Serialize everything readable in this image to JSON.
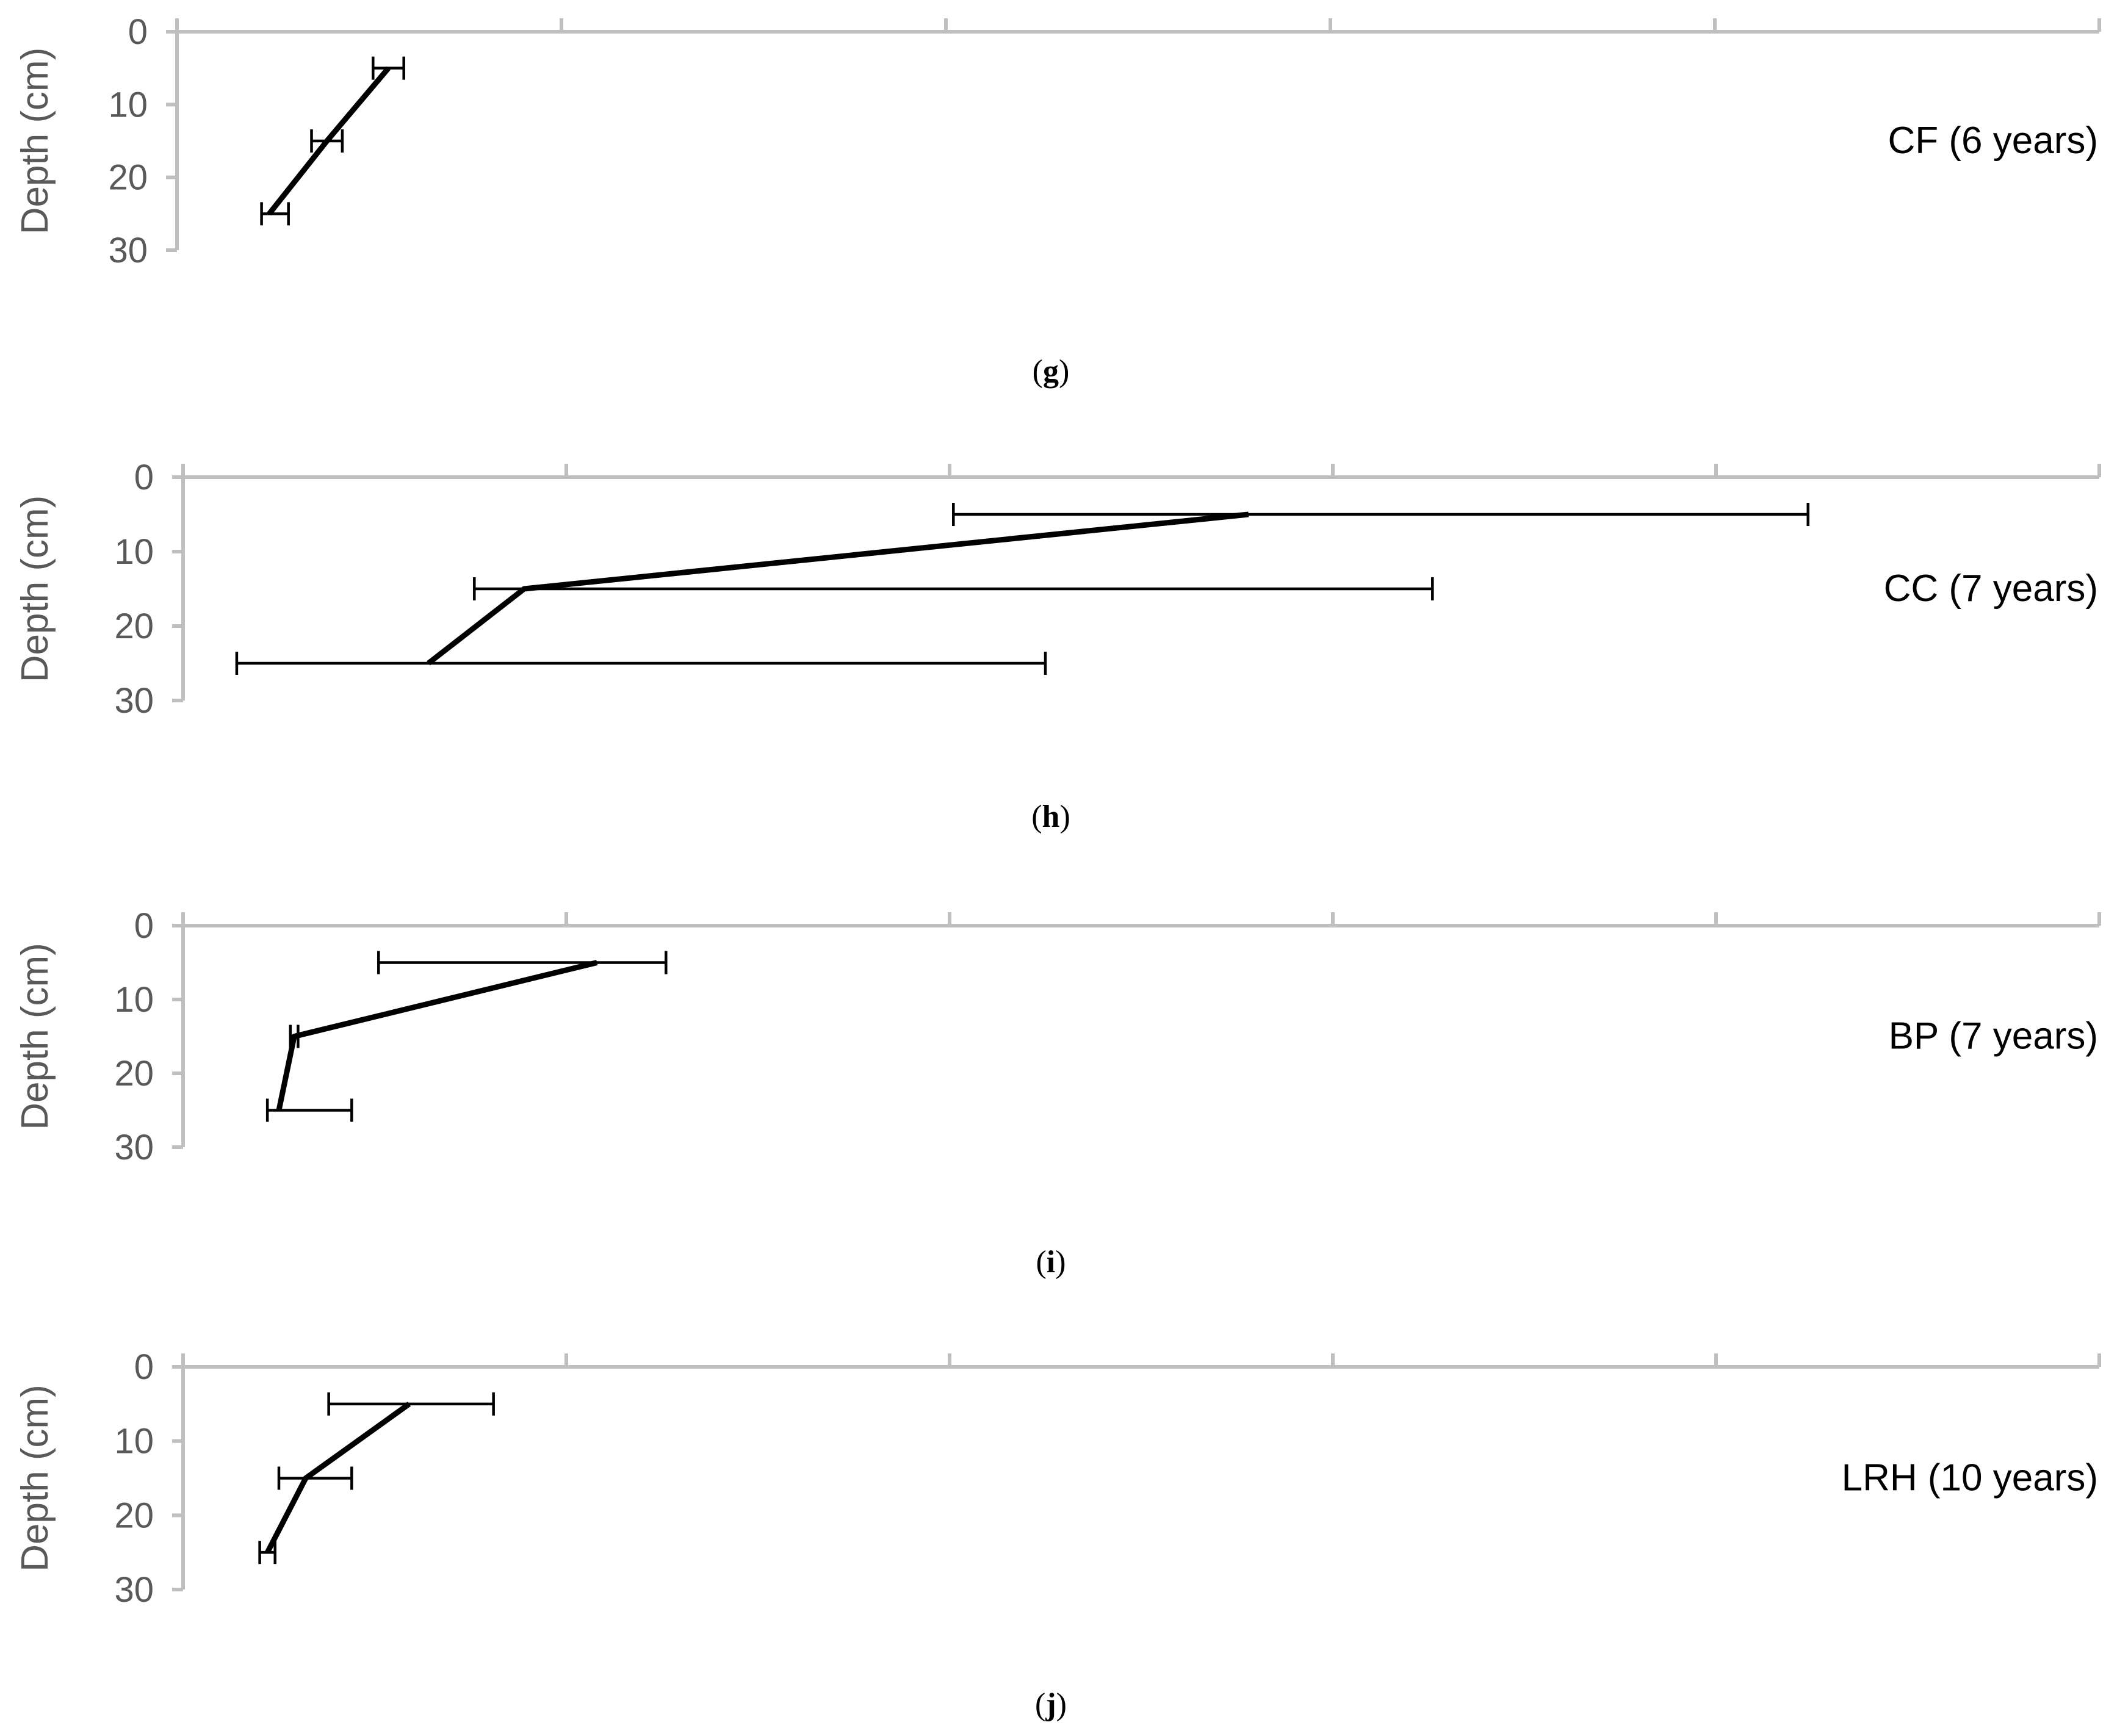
{
  "chart_data": [
    {
      "type": "line",
      "panel_tag": "g",
      "series_label": "CF (6 years)",
      "ylabel": "Depth (cm)",
      "y_ticks": [
        "0",
        "10",
        "20",
        "30"
      ],
      "ylim": [
        0,
        30
      ],
      "y_inverted": true,
      "xlim": [
        0,
        5
      ],
      "x_ticks_shown": false,
      "points": [
        {
          "depth": 5,
          "x": 0.55,
          "err_low": 0.51,
          "err_high": 0.59
        },
        {
          "depth": 15,
          "x": 0.39,
          "err_low": 0.35,
          "err_high": 0.43
        },
        {
          "depth": 25,
          "x": 0.24,
          "err_low": 0.22,
          "err_high": 0.29
        }
      ]
    },
    {
      "type": "line",
      "panel_tag": "h",
      "series_label": "CC (7 years)",
      "ylabel": "Depth (cm)",
      "y_ticks": [
        "0",
        "10",
        "20",
        "30"
      ],
      "ylim": [
        0,
        30
      ],
      "y_inverted": true,
      "xlim": [
        0,
        5
      ],
      "x_ticks_shown": false,
      "points": [
        {
          "depth": 5,
          "x": 2.78,
          "err_low": 2.01,
          "err_high": 4.24
        },
        {
          "depth": 15,
          "x": 0.89,
          "err_low": 0.76,
          "err_high": 3.26
        },
        {
          "depth": 25,
          "x": 0.64,
          "err_low": 0.14,
          "err_high": 2.25
        }
      ]
    },
    {
      "type": "line",
      "panel_tag": "i",
      "series_label": "BP (7 years)",
      "ylabel": "Depth (cm)",
      "y_ticks": [
        "0",
        "10",
        "20",
        "30"
      ],
      "ylim": [
        0,
        30
      ],
      "y_inverted": true,
      "xlim": [
        0,
        5
      ],
      "x_ticks_shown": false,
      "points": [
        {
          "depth": 5,
          "x": 1.08,
          "err_low": 0.51,
          "err_high": 1.26
        },
        {
          "depth": 15,
          "x": 0.29,
          "err_low": 0.28,
          "err_high": 0.3
        },
        {
          "depth": 25,
          "x": 0.25,
          "err_low": 0.22,
          "err_high": 0.44
        }
      ]
    },
    {
      "type": "line",
      "panel_tag": "j",
      "series_label": "LRH (10 years)",
      "ylabel": "Depth (cm)",
      "y_ticks": [
        "0",
        "10",
        "20",
        "30"
      ],
      "ylim": [
        0,
        30
      ],
      "y_inverted": true,
      "xlim": [
        0,
        5
      ],
      "x_ticks_shown": false,
      "points": [
        {
          "depth": 5,
          "x": 0.59,
          "err_low": 0.38,
          "err_high": 0.81
        },
        {
          "depth": 15,
          "x": 0.32,
          "err_low": 0.25,
          "err_high": 0.44
        },
        {
          "depth": 25,
          "x": 0.22,
          "err_low": 0.2,
          "err_high": 0.24
        }
      ]
    }
  ]
}
